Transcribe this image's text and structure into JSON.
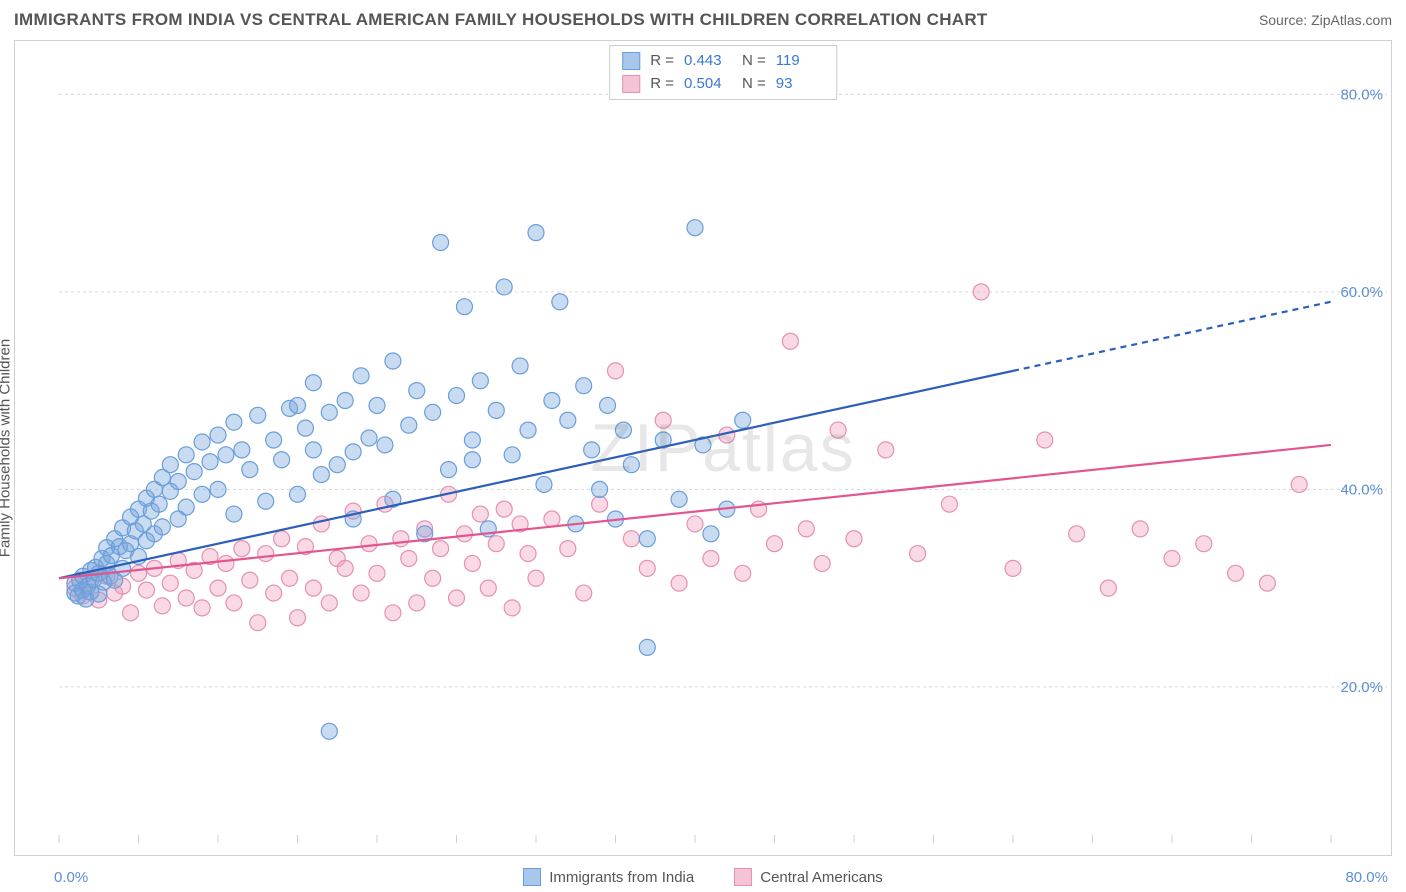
{
  "title": "IMMIGRANTS FROM INDIA VS CENTRAL AMERICAN FAMILY HOUSEHOLDS WITH CHILDREN CORRELATION CHART",
  "source": "Source: ZipAtlas.com",
  "ylabel": "Family Households with Children",
  "watermark": "ZIPatlas",
  "chart": {
    "type": "scatter",
    "xlim": [
      0,
      80
    ],
    "ylim": [
      5,
      85
    ],
    "xtick_minor": [
      0,
      5,
      10,
      15,
      20,
      25,
      30,
      35,
      40,
      45,
      50,
      55,
      60,
      65,
      70,
      75,
      80
    ],
    "yticks": [
      20,
      40,
      60,
      80
    ],
    "ytick_labels": [
      "20.0%",
      "40.0%",
      "60.0%",
      "80.0%"
    ],
    "x_axis_start": "0.0%",
    "x_axis_end": "80.0%",
    "grid_color": "#d8d8d8",
    "axis_color": "#d0d0d0",
    "tick_label_color": "#5b8fd6",
    "background_color": "#ffffff",
    "marker_radius": 8,
    "marker_stroke_width": 1.2,
    "line_width": 2.2
  },
  "series_a": {
    "name": "Immigrants from India",
    "fill": "rgba(120,165,220,0.40)",
    "stroke": "#6a9edb",
    "line_color": "#2b5fb8",
    "swatch_fill": "#a9c6ec",
    "swatch_border": "#6a9edb",
    "R_label": "R =",
    "R": "0.443",
    "N_label": "N =",
    "N": "119",
    "trend": {
      "x1": 0,
      "y1": 31,
      "x2": 60,
      "y2": 52,
      "x_dash_to": 80,
      "y_dash_to": 59
    },
    "points": [
      [
        1,
        29.5
      ],
      [
        1,
        30.5
      ],
      [
        1.2,
        29.2
      ],
      [
        1.3,
        30.8
      ],
      [
        1.5,
        29.8
      ],
      [
        1.5,
        31.2
      ],
      [
        1.7,
        28.9
      ],
      [
        1.8,
        30.2
      ],
      [
        2,
        31.8
      ],
      [
        2,
        29.6
      ],
      [
        2.2,
        30.9
      ],
      [
        2.3,
        32.1
      ],
      [
        2.5,
        29.4
      ],
      [
        2.5,
        31.5
      ],
      [
        2.7,
        33.0
      ],
      [
        2.8,
        30.6
      ],
      [
        3,
        32.5
      ],
      [
        3,
        34.1
      ],
      [
        3.2,
        31.2
      ],
      [
        3.3,
        33.3
      ],
      [
        3.5,
        35.0
      ],
      [
        3.5,
        30.8
      ],
      [
        3.8,
        34.2
      ],
      [
        4,
        36.1
      ],
      [
        4,
        32.0
      ],
      [
        4.2,
        33.8
      ],
      [
        4.5,
        37.2
      ],
      [
        4.5,
        34.5
      ],
      [
        4.8,
        35.8
      ],
      [
        5,
        38.0
      ],
      [
        5,
        33.2
      ],
      [
        5.3,
        36.5
      ],
      [
        5.5,
        39.1
      ],
      [
        5.5,
        34.8
      ],
      [
        5.8,
        37.8
      ],
      [
        6,
        40.0
      ],
      [
        6,
        35.5
      ],
      [
        6.3,
        38.5
      ],
      [
        6.5,
        41.2
      ],
      [
        6.5,
        36.2
      ],
      [
        7,
        39.8
      ],
      [
        7,
        42.5
      ],
      [
        7.5,
        37.0
      ],
      [
        7.5,
        40.8
      ],
      [
        8,
        43.5
      ],
      [
        8,
        38.2
      ],
      [
        8.5,
        41.8
      ],
      [
        9,
        44.8
      ],
      [
        9,
        39.5
      ],
      [
        9.5,
        42.8
      ],
      [
        10,
        45.5
      ],
      [
        10,
        40.0
      ],
      [
        10.5,
        43.5
      ],
      [
        11,
        46.8
      ],
      [
        11,
        37.5
      ],
      [
        11.5,
        44.0
      ],
      [
        12,
        42.0
      ],
      [
        12.5,
        47.5
      ],
      [
        13,
        38.8
      ],
      [
        13.5,
        45.0
      ],
      [
        14,
        43.0
      ],
      [
        14.5,
        48.2
      ],
      [
        15,
        39.5
      ],
      [
        15.5,
        46.2
      ],
      [
        16,
        44.0
      ],
      [
        16,
        50.8
      ],
      [
        16.5,
        41.5
      ],
      [
        17,
        47.8
      ],
      [
        17.5,
        42.5
      ],
      [
        18,
        49.0
      ],
      [
        18.5,
        43.8
      ],
      [
        19,
        51.5
      ],
      [
        19.5,
        45.2
      ],
      [
        20,
        48.5
      ],
      [
        20.5,
        44.5
      ],
      [
        21,
        53.0
      ],
      [
        21,
        39.0
      ],
      [
        22,
        46.5
      ],
      [
        22.5,
        50.0
      ],
      [
        23,
        35.5
      ],
      [
        23.5,
        47.8
      ],
      [
        24,
        65.0
      ],
      [
        24.5,
        42.0
      ],
      [
        25,
        49.5
      ],
      [
        25.5,
        58.5
      ],
      [
        26,
        45.0
      ],
      [
        26.5,
        51.0
      ],
      [
        27,
        36.0
      ],
      [
        27.5,
        48.0
      ],
      [
        28,
        60.5
      ],
      [
        28.5,
        43.5
      ],
      [
        29,
        52.5
      ],
      [
        29.5,
        46.0
      ],
      [
        30,
        66.0
      ],
      [
        30.5,
        40.5
      ],
      [
        31,
        49.0
      ],
      [
        31.5,
        59.0
      ],
      [
        32,
        47.0
      ],
      [
        32.5,
        36.5
      ],
      [
        33,
        50.5
      ],
      [
        33.5,
        44.0
      ],
      [
        34,
        40.0
      ],
      [
        34.5,
        48.5
      ],
      [
        35,
        37.0
      ],
      [
        35.5,
        46.0
      ],
      [
        36,
        42.5
      ],
      [
        37,
        24.0
      ],
      [
        37,
        35.0
      ],
      [
        38,
        45.0
      ],
      [
        39,
        39.0
      ],
      [
        40,
        66.5
      ],
      [
        40.5,
        44.5
      ],
      [
        41,
        35.5
      ],
      [
        42,
        38.0
      ],
      [
        43,
        47.0
      ],
      [
        17,
        15.5
      ],
      [
        15,
        48.5
      ],
      [
        18.5,
        37.0
      ],
      [
        26,
        43.0
      ]
    ]
  },
  "series_b": {
    "name": "Central Americans",
    "fill": "rgba(238,160,190,0.40)",
    "stroke": "#e690b2",
    "line_color": "#e2568f",
    "swatch_fill": "#f4c3d6",
    "swatch_border": "#e690b2",
    "R_label": "R =",
    "R": "0.504",
    "N_label": "N =",
    "N": "93",
    "trend": {
      "x1": 0,
      "y1": 31,
      "x2": 80,
      "y2": 44.5
    },
    "points": [
      [
        1,
        30.0
      ],
      [
        1.5,
        29.2
      ],
      [
        2,
        30.8
      ],
      [
        2.5,
        28.8
      ],
      [
        3,
        31.2
      ],
      [
        3.5,
        29.5
      ],
      [
        4,
        30.2
      ],
      [
        4.5,
        27.5
      ],
      [
        5,
        31.5
      ],
      [
        5.5,
        29.8
      ],
      [
        6,
        32.0
      ],
      [
        6.5,
        28.2
      ],
      [
        7,
        30.5
      ],
      [
        7.5,
        32.8
      ],
      [
        8,
        29.0
      ],
      [
        8.5,
        31.8
      ],
      [
        9,
        28.0
      ],
      [
        9.5,
        33.2
      ],
      [
        10,
        30.0
      ],
      [
        10.5,
        32.5
      ],
      [
        11,
        28.5
      ],
      [
        11.5,
        34.0
      ],
      [
        12,
        30.8
      ],
      [
        12.5,
        26.5
      ],
      [
        13,
        33.5
      ],
      [
        13.5,
        29.5
      ],
      [
        14,
        35.0
      ],
      [
        14.5,
        31.0
      ],
      [
        15,
        27.0
      ],
      [
        15.5,
        34.2
      ],
      [
        16,
        30.0
      ],
      [
        16.5,
        36.5
      ],
      [
        17,
        28.5
      ],
      [
        17.5,
        33.0
      ],
      [
        18,
        32.0
      ],
      [
        18.5,
        37.8
      ],
      [
        19,
        29.5
      ],
      [
        19.5,
        34.5
      ],
      [
        20,
        31.5
      ],
      [
        20.5,
        38.5
      ],
      [
        21,
        27.5
      ],
      [
        21.5,
        35.0
      ],
      [
        22,
        33.0
      ],
      [
        22.5,
        28.5
      ],
      [
        23,
        36.0
      ],
      [
        23.5,
        31.0
      ],
      [
        24,
        34.0
      ],
      [
        24.5,
        39.5
      ],
      [
        25,
        29.0
      ],
      [
        25.5,
        35.5
      ],
      [
        26,
        32.5
      ],
      [
        26.5,
        37.5
      ],
      [
        27,
        30.0
      ],
      [
        27.5,
        34.5
      ],
      [
        28,
        38.0
      ],
      [
        28.5,
        28.0
      ],
      [
        29,
        36.5
      ],
      [
        29.5,
        33.5
      ],
      [
        30,
        31.0
      ],
      [
        31,
        37.0
      ],
      [
        32,
        34.0
      ],
      [
        33,
        29.5
      ],
      [
        34,
        38.5
      ],
      [
        35,
        52.0
      ],
      [
        36,
        35.0
      ],
      [
        37,
        32.0
      ],
      [
        38,
        47.0
      ],
      [
        39,
        30.5
      ],
      [
        40,
        36.5
      ],
      [
        41,
        33.0
      ],
      [
        42,
        45.5
      ],
      [
        43,
        31.5
      ],
      [
        44,
        38.0
      ],
      [
        45,
        34.5
      ],
      [
        46,
        55.0
      ],
      [
        47,
        36.0
      ],
      [
        48,
        32.5
      ],
      [
        49,
        46.0
      ],
      [
        50,
        35.0
      ],
      [
        52,
        44.0
      ],
      [
        54,
        33.5
      ],
      [
        56,
        38.5
      ],
      [
        58,
        60.0
      ],
      [
        60,
        32.0
      ],
      [
        62,
        45.0
      ],
      [
        64,
        35.5
      ],
      [
        66,
        30.0
      ],
      [
        68,
        36.0
      ],
      [
        70,
        33.0
      ],
      [
        72,
        34.5
      ],
      [
        74,
        31.5
      ],
      [
        76,
        30.5
      ],
      [
        78,
        40.5
      ]
    ]
  }
}
